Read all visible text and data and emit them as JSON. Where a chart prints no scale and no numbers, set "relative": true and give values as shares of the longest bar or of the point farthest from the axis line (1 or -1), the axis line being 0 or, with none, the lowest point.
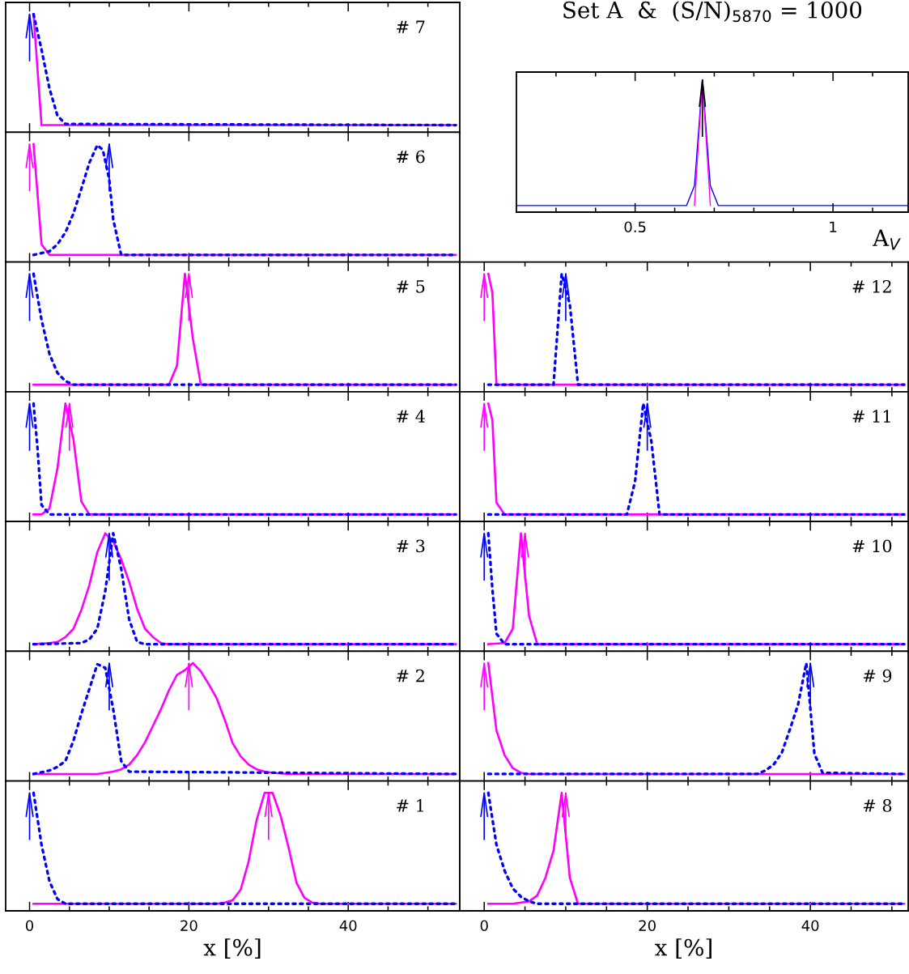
{
  "chart_data": [
    {
      "type": "line",
      "relative": true,
      "tick_labels": false,
      "xlim": [
        -3,
        54
      ],
      "xticks": [
        0,
        {
          "value": 5,
          "label": null
        },
        {
          "value": 10,
          "label": null
        },
        {
          "value": 15,
          "label": null
        },
        20,
        {
          "value": 25,
          "label": null
        },
        {
          "value": 30,
          "label": null
        },
        {
          "value": 35,
          "label": null
        },
        40,
        {
          "value": 45,
          "label": null
        },
        {
          "value": 50,
          "label": null
        }
      ],
      "annotations": [
        "# 7"
      ],
      "series": [
        {
          "color": "#ff00ff",
          "line_style": "solid",
          "x": [
            0.5,
            1.5,
            53.5
          ],
          "values": [
            1,
            0.06,
            0.06
          ]
        },
        {
          "color": "#0000ff",
          "line_style": "dotted",
          "x": [
            0.5,
            1.5,
            2.5,
            3.5,
            4.5,
            53.5
          ],
          "values": [
            1,
            0.7,
            0.37,
            0.14,
            0.07,
            0.06
          ]
        }
      ],
      "ref_lines": [
        {
          "axis": "x",
          "value": 0,
          "color": "#0000ff"
        }
      ]
    },
    {
      "type": "line",
      "relative": true,
      "tick_labels": "x",
      "title": "Set A  &  (S/N)$_{5870}$ = 1000",
      "xlabel": "A$_{V}$",
      "xlim": [
        0.2,
        1.19
      ],
      "xticks": [
        {
          "value": 0.3,
          "label": null
        },
        {
          "value": 0.4,
          "label": null
        },
        0.5,
        {
          "value": 0.6,
          "label": null
        },
        {
          "value": 0.7,
          "label": null
        },
        {
          "value": 0.8,
          "label": null
        },
        {
          "value": 0.9,
          "label": null
        },
        1,
        {
          "value": 1.1,
          "label": null
        }
      ],
      "series": [
        {
          "color": "#0000ff",
          "line_style": "solid",
          "x": [
            0.2,
            0.63,
            0.65,
            0.67,
            0.69,
            0.71,
            1.19
          ],
          "values": [
            0.05,
            0.05,
            0.2,
            1,
            0.2,
            0.05,
            0.05
          ]
        },
        {
          "color": "#ff00ff",
          "line_style": "solid",
          "x": [
            0.65,
            0.67,
            0.69
          ],
          "values": [
            0.05,
            1,
            0.05
          ]
        }
      ],
      "ref_lines": [
        {
          "axis": "x",
          "value": 0.67,
          "color": "#000000"
        }
      ]
    },
    {
      "type": "line",
      "relative": true,
      "tick_labels": false,
      "xlim": [
        -3,
        54
      ],
      "xticks": [
        0,
        {
          "value": 5,
          "label": null
        },
        {
          "value": 10,
          "label": null
        },
        {
          "value": 15,
          "label": null
        },
        20,
        {
          "value": 25,
          "label": null
        },
        {
          "value": 30,
          "label": null
        },
        {
          "value": 35,
          "label": null
        },
        40,
        {
          "value": 45,
          "label": null
        },
        {
          "value": 50,
          "label": null
        }
      ],
      "annotations": [
        "# 6"
      ],
      "series": [
        {
          "color": "#ff00ff",
          "line_style": "solid",
          "x": [
            0.5,
            1.5,
            2.5,
            53.5
          ],
          "values": [
            1,
            0.15,
            0.06,
            0.06
          ]
        },
        {
          "color": "#0000ff",
          "line_style": "dotted",
          "x": [
            0.5,
            2.5,
            3.5,
            4.5,
            5.5,
            6.5,
            7.5,
            8.5,
            9.2,
            10,
            10.5,
            11.5,
            53.5
          ],
          "values": [
            0.06,
            0.09,
            0.15,
            0.25,
            0.41,
            0.62,
            0.84,
            0.99,
            0.95,
            0.7,
            0.36,
            0.06,
            0.06
          ]
        }
      ],
      "ref_lines": [
        {
          "axis": "x",
          "value": 0,
          "color": "#ff00ff"
        },
        {
          "axis": "x",
          "value": 10,
          "color": "#0000ff"
        }
      ]
    },
    {
      "type": "line",
      "relative": true,
      "tick_labels": false,
      "xlim": [
        -3,
        54
      ],
      "xticks": [
        0,
        {
          "value": 5,
          "label": null
        },
        {
          "value": 10,
          "label": null
        },
        {
          "value": 15,
          "label": null
        },
        20,
        {
          "value": 25,
          "label": null
        },
        {
          "value": 30,
          "label": null
        },
        {
          "value": 35,
          "label": null
        },
        40,
        {
          "value": 45,
          "label": null
        },
        {
          "value": 50,
          "label": null
        }
      ],
      "annotations": [
        "# 5"
      ],
      "series": [
        {
          "color": "#ff00ff",
          "line_style": "solid",
          "x": [
            0.5,
            17.5,
            18.5,
            19.5,
            20.5,
            21.5,
            53.5
          ],
          "values": [
            0.06,
            0.06,
            0.22,
            1,
            0.45,
            0.06,
            0.06
          ]
        },
        {
          "color": "#0000ff",
          "line_style": "dotted",
          "x": [
            0.5,
            1.5,
            2.5,
            3.5,
            4.5,
            5.5,
            53.5
          ],
          "values": [
            1,
            0.61,
            0.32,
            0.16,
            0.09,
            0.06,
            0.06
          ]
        }
      ],
      "ref_lines": [
        {
          "axis": "x",
          "value": 0,
          "color": "#0000ff"
        },
        {
          "axis": "x",
          "value": 20,
          "color": "#ff00ff"
        }
      ]
    },
    {
      "type": "line",
      "relative": true,
      "tick_labels": false,
      "xlim": [
        -3,
        52
      ],
      "xticks": [
        0,
        {
          "value": 5,
          "label": null
        },
        {
          "value": 10,
          "label": null
        },
        {
          "value": 15,
          "label": null
        },
        20,
        {
          "value": 25,
          "label": null
        },
        {
          "value": 30,
          "label": null
        },
        {
          "value": 35,
          "label": null
        },
        40,
        {
          "value": 45,
          "label": null
        },
        {
          "value": 50,
          "label": null
        }
      ],
      "annotations": [
        "# 12"
      ],
      "series": [
        {
          "color": "#ff00ff",
          "line_style": "solid",
          "x": [
            0.5,
            1.0,
            1.5,
            51.5
          ],
          "values": [
            1,
            0.84,
            0.06,
            0.06
          ]
        },
        {
          "color": "#0000ff",
          "line_style": "dotted",
          "x": [
            0.5,
            8.5,
            9.5,
            10.5,
            11.5,
            51.5
          ],
          "values": [
            0.06,
            0.06,
            1,
            0.74,
            0.06,
            0.06
          ]
        }
      ],
      "ref_lines": [
        {
          "axis": "x",
          "value": 0,
          "color": "#ff00ff"
        },
        {
          "axis": "x",
          "value": 10,
          "color": "#0000ff"
        }
      ]
    },
    {
      "type": "line",
      "relative": true,
      "tick_labels": false,
      "xlim": [
        -3,
        54
      ],
      "xticks": [
        0,
        {
          "value": 5,
          "label": null
        },
        {
          "value": 10,
          "label": null
        },
        {
          "value": 15,
          "label": null
        },
        20,
        {
          "value": 25,
          "label": null
        },
        {
          "value": 30,
          "label": null
        },
        {
          "value": 35,
          "label": null
        },
        40,
        {
          "value": 45,
          "label": null
        },
        {
          "value": 50,
          "label": null
        }
      ],
      "annotations": [
        "# 4"
      ],
      "series": [
        {
          "color": "#ff00ff",
          "line_style": "solid",
          "x": [
            0.5,
            1.5,
            2.5,
            3.5,
            4.5,
            5.5,
            6.5,
            7.5,
            53.5
          ],
          "values": [
            0.06,
            0.06,
            0.11,
            0.45,
            1,
            0.7,
            0.17,
            0.06,
            0.06
          ]
        },
        {
          "color": "#0000ff",
          "line_style": "dotted",
          "x": [
            0.5,
            1.0,
            1.5,
            2.5,
            53.5
          ],
          "values": [
            1,
            0.62,
            0.14,
            0.06,
            0.06
          ]
        }
      ],
      "ref_lines": [
        {
          "axis": "x",
          "value": 0,
          "color": "#0000ff"
        },
        {
          "axis": "x",
          "value": 5,
          "color": "#ff00ff"
        }
      ]
    },
    {
      "type": "line",
      "relative": true,
      "tick_labels": false,
      "xlim": [
        -3,
        52
      ],
      "xticks": [
        0,
        {
          "value": 5,
          "label": null
        },
        {
          "value": 10,
          "label": null
        },
        {
          "value": 15,
          "label": null
        },
        20,
        {
          "value": 25,
          "label": null
        },
        {
          "value": 30,
          "label": null
        },
        {
          "value": 35,
          "label": null
        },
        40,
        {
          "value": 45,
          "label": null
        },
        {
          "value": 50,
          "label": null
        }
      ],
      "annotations": [
        "# 11"
      ],
      "series": [
        {
          "color": "#ff00ff",
          "line_style": "solid",
          "x": [
            0.5,
            1.0,
            1.5,
            2.5,
            51.5
          ],
          "values": [
            1,
            0.86,
            0.16,
            0.06,
            0.06
          ]
        },
        {
          "color": "#0000ff",
          "line_style": "dotted",
          "x": [
            0.5,
            17.5,
            18.5,
            19.5,
            20.5,
            21.5,
            51.5
          ],
          "values": [
            0.06,
            0.06,
            0.34,
            1,
            0.68,
            0.06,
            0.06
          ]
        }
      ],
      "ref_lines": [
        {
          "axis": "x",
          "value": 0,
          "color": "#ff00ff"
        },
        {
          "axis": "x",
          "value": 20,
          "color": "#0000ff"
        }
      ]
    },
    {
      "type": "line",
      "relative": true,
      "tick_labels": false,
      "xlim": [
        -3,
        54
      ],
      "xticks": [
        0,
        {
          "value": 5,
          "label": null
        },
        {
          "value": 10,
          "label": null
        },
        {
          "value": 15,
          "label": null
        },
        20,
        {
          "value": 25,
          "label": null
        },
        {
          "value": 30,
          "label": null
        },
        {
          "value": 35,
          "label": null
        },
        40,
        {
          "value": 45,
          "label": null
        },
        {
          "value": 50,
          "label": null
        }
      ],
      "annotations": [
        "# 3"
      ],
      "series": [
        {
          "color": "#ff00ff",
          "line_style": "solid",
          "x": [
            0.5,
            2.5,
            3.5,
            4.5,
            5.5,
            6.5,
            7.5,
            8.5,
            9.5,
            10.5,
            11.5,
            12.5,
            13.5,
            14.5,
            15.5,
            16.5,
            17.5,
            53.5
          ],
          "values": [
            0.06,
            0.07,
            0.08,
            0.12,
            0.19,
            0.35,
            0.56,
            0.84,
            1,
            0.93,
            0.78,
            0.59,
            0.36,
            0.19,
            0.12,
            0.07,
            0.06,
            0.06
          ]
        },
        {
          "color": "#0000ff",
          "line_style": "dotted",
          "x": [
            0.5,
            6.5,
            7.5,
            8.5,
            9.5,
            10.5,
            11.5,
            12.5,
            13.5,
            14.5,
            53.5
          ],
          "values": [
            0.06,
            0.07,
            0.1,
            0.19,
            0.51,
            1,
            0.7,
            0.27,
            0.08,
            0.06,
            0.06
          ]
        }
      ],
      "ref_lines": [
        {
          "axis": "x",
          "value": 10,
          "color": "#0000ff"
        }
      ]
    },
    {
      "type": "line",
      "relative": true,
      "tick_labels": false,
      "xlim": [
        -3,
        52
      ],
      "xticks": [
        0,
        {
          "value": 5,
          "label": null
        },
        {
          "value": 10,
          "label": null
        },
        {
          "value": 15,
          "label": null
        },
        20,
        {
          "value": 25,
          "label": null
        },
        {
          "value": 30,
          "label": null
        },
        {
          "value": 35,
          "label": null
        },
        40,
        {
          "value": 45,
          "label": null
        },
        {
          "value": 50,
          "label": null
        }
      ],
      "annotations": [
        "# 10"
      ],
      "series": [
        {
          "color": "#ff00ff",
          "line_style": "solid",
          "x": [
            0.5,
            2.5,
            3.5,
            4.5,
            5.5,
            6.5,
            51.5
          ],
          "values": [
            0.06,
            0.07,
            0.19,
            1,
            0.3,
            0.06,
            0.06
          ]
        },
        {
          "color": "#0000ff",
          "line_style": "dotted",
          "x": [
            0.5,
            1.0,
            1.5,
            2.5,
            51.5
          ],
          "values": [
            1,
            0.53,
            0.15,
            0.06,
            0.06
          ]
        }
      ],
      "ref_lines": [
        {
          "axis": "x",
          "value": 0,
          "color": "#0000ff"
        },
        {
          "axis": "x",
          "value": 5,
          "color": "#ff00ff"
        }
      ]
    },
    {
      "type": "line",
      "relative": true,
      "tick_labels": false,
      "xlim": [
        -3,
        54
      ],
      "xticks": [
        0,
        {
          "value": 5,
          "label": null
        },
        {
          "value": 10,
          "label": null
        },
        {
          "value": 15,
          "label": null
        },
        20,
        {
          "value": 25,
          "label": null
        },
        {
          "value": 30,
          "label": null
        },
        {
          "value": 35,
          "label": null
        },
        40,
        {
          "value": 45,
          "label": null
        },
        {
          "value": 50,
          "label": null
        }
      ],
      "annotations": [
        "# 2"
      ],
      "series": [
        {
          "color": "#ff00ff",
          "line_style": "solid",
          "x": [
            0.5,
            8.5,
            10.5,
            11.5,
            12.5,
            13.5,
            14.5,
            15.5,
            16.5,
            17.5,
            18.5,
            19.5,
            20.5,
            21.5,
            22.5,
            23.5,
            24.5,
            25.5,
            26.5,
            27.5,
            28.5,
            29.5,
            30.5,
            32.5,
            53.5
          ],
          "values": [
            0.06,
            0.06,
            0.08,
            0.1,
            0.14,
            0.22,
            0.33,
            0.47,
            0.61,
            0.77,
            0.9,
            0.94,
            1,
            0.93,
            0.82,
            0.7,
            0.52,
            0.32,
            0.21,
            0.14,
            0.1,
            0.08,
            0.07,
            0.06,
            0.06
          ]
        },
        {
          "color": "#0000ff",
          "line_style": "dotted",
          "x": [
            0.5,
            2.5,
            3.5,
            4.5,
            5.5,
            6.5,
            7.5,
            8.5,
            9.5,
            10.5,
            11.5,
            12.5,
            53.5
          ],
          "values": [
            0.06,
            0.09,
            0.12,
            0.17,
            0.34,
            0.57,
            0.78,
            0.99,
            0.96,
            0.61,
            0.17,
            0.08,
            0.06
          ]
        }
      ],
      "ref_lines": [
        {
          "axis": "x",
          "value": 10,
          "color": "#0000ff"
        },
        {
          "axis": "x",
          "value": 20,
          "color": "#ff00ff"
        }
      ]
    },
    {
      "type": "line",
      "relative": true,
      "tick_labels": false,
      "xlim": [
        -3,
        52
      ],
      "xticks": [
        0,
        {
          "value": 5,
          "label": null
        },
        {
          "value": 10,
          "label": null
        },
        {
          "value": 15,
          "label": null
        },
        20,
        {
          "value": 25,
          "label": null
        },
        {
          "value": 30,
          "label": null
        },
        {
          "value": 35,
          "label": null
        },
        40,
        {
          "value": 45,
          "label": null
        },
        {
          "value": 50,
          "label": null
        }
      ],
      "annotations": [
        "# 9"
      ],
      "series": [
        {
          "color": "#ff00ff",
          "line_style": "solid",
          "x": [
            0.5,
            1.5,
            2.5,
            3.5,
            4.5,
            5.5,
            51.5
          ],
          "values": [
            1,
            0.43,
            0.22,
            0.11,
            0.07,
            0.06,
            0.06
          ]
        },
        {
          "color": "#0000ff",
          "line_style": "dotted",
          "x": [
            0.5,
            33.5,
            34.5,
            35.5,
            36.5,
            37.5,
            38.5,
            39.5,
            40.5,
            41.5,
            51.5
          ],
          "values": [
            0.06,
            0.06,
            0.09,
            0.14,
            0.24,
            0.44,
            0.65,
            1,
            0.23,
            0.07,
            0.06
          ]
        }
      ],
      "ref_lines": [
        {
          "axis": "x",
          "value": 0,
          "color": "#ff00ff"
        },
        {
          "axis": "x",
          "value": 40,
          "color": "#0000ff"
        }
      ]
    },
    {
      "type": "line",
      "relative": true,
      "tick_labels": "x",
      "xlabel": "x [%]",
      "xlim": [
        -3,
        54
      ],
      "xticks": [
        0,
        {
          "value": 5,
          "label": null
        },
        {
          "value": 10,
          "label": null
        },
        {
          "value": 15,
          "label": null
        },
        20,
        {
          "value": 25,
          "label": null
        },
        {
          "value": 30,
          "label": null
        },
        {
          "value": 35,
          "label": null
        },
        40,
        {
          "value": 45,
          "label": null
        },
        {
          "value": 50,
          "label": null
        }
      ],
      "annotations": [
        "# 1"
      ],
      "series": [
        {
          "color": "#ff00ff",
          "line_style": "solid",
          "x": [
            0.5,
            23.5,
            24.5,
            25.5,
            26.5,
            27.5,
            28.5,
            29.5,
            30.5,
            31.5,
            32.5,
            33.5,
            34.5,
            35.5,
            36.5,
            53.5
          ],
          "values": [
            0.06,
            0.06,
            0.07,
            0.09,
            0.18,
            0.42,
            0.77,
            1,
            1,
            0.81,
            0.54,
            0.24,
            0.11,
            0.07,
            0.06,
            0.06
          ]
        },
        {
          "color": "#0000ff",
          "line_style": "dotted",
          "x": [
            0.5,
            1.5,
            2.5,
            3.5,
            4.5,
            53.5
          ],
          "values": [
            1,
            0.56,
            0.25,
            0.1,
            0.06,
            0.06
          ]
        }
      ],
      "ref_lines": [
        {
          "axis": "x",
          "value": 0,
          "color": "#0000ff"
        },
        {
          "axis": "x",
          "value": 30,
          "color": "#ff00ff"
        }
      ]
    },
    {
      "type": "line",
      "relative": true,
      "tick_labels": "x",
      "xlabel": "x [%]",
      "xlim": [
        -3,
        52
      ],
      "xticks": [
        0,
        {
          "value": 5,
          "label": null
        },
        {
          "value": 10,
          "label": null
        },
        {
          "value": 15,
          "label": null
        },
        20,
        {
          "value": 25,
          "label": null
        },
        {
          "value": 30,
          "label": null
        },
        {
          "value": 35,
          "label": null
        },
        40,
        {
          "value": 45,
          "label": null
        },
        {
          "value": 50,
          "label": null
        }
      ],
      "annotations": [
        "# 8"
      ],
      "series": [
        {
          "color": "#ff00ff",
          "line_style": "solid",
          "x": [
            0.5,
            3.5,
            5.5,
            6.5,
            7.5,
            8.5,
            9.5,
            10.5,
            11.5,
            51.5
          ],
          "values": [
            0.06,
            0.06,
            0.08,
            0.13,
            0.28,
            0.51,
            1,
            0.28,
            0.06,
            0.06
          ]
        },
        {
          "color": "#0000ff",
          "line_style": "dotted",
          "x": [
            0.5,
            1.5,
            2.5,
            3.5,
            4.5,
            5.5,
            6.5,
            51.5
          ],
          "values": [
            1,
            0.56,
            0.34,
            0.19,
            0.12,
            0.08,
            0.06,
            0.06
          ]
        }
      ],
      "ref_lines": [
        {
          "axis": "x",
          "value": 0,
          "color": "#0000ff"
        },
        {
          "axis": "x",
          "value": 10,
          "color": "#ff00ff"
        }
      ]
    }
  ]
}
